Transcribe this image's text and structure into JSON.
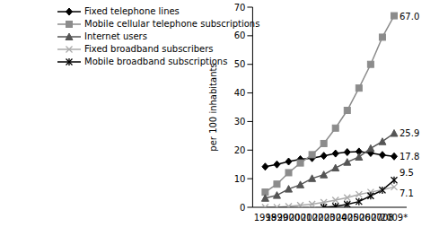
{
  "chart_data": {
    "type": "line",
    "y_label": "per 100 inhabitants",
    "categories": [
      "1998",
      "1999",
      "2000",
      "2001",
      "2002",
      "2003",
      "2004",
      "2005",
      "2006",
      "2007",
      "2008",
      "2009*"
    ],
    "ylim": [
      0,
      70
    ],
    "yticks": [
      0,
      10,
      20,
      30,
      40,
      50,
      60,
      70
    ],
    "grid": false,
    "legend": "upper left",
    "series": [
      {
        "name": "Fixed telephone lines",
        "color": "#000000",
        "marker": "diamond",
        "values": [
          14.2,
          15.0,
          16.0,
          16.8,
          17.2,
          18.0,
          18.8,
          19.3,
          19.5,
          19.0,
          18.3,
          17.8
        ],
        "value_labels": [
          null,
          null,
          null,
          null,
          null,
          null,
          null,
          null,
          null,
          null,
          null,
          "17.8"
        ]
      },
      {
        "name": "Mobile cellular telephone subscriptions",
        "color": "#8c8c8c",
        "marker": "square",
        "values": [
          5.3,
          8.1,
          12.1,
          15.5,
          18.4,
          22.3,
          27.7,
          33.9,
          41.7,
          50.0,
          59.5,
          67.0
        ],
        "value_labels": [
          null,
          null,
          null,
          null,
          null,
          null,
          null,
          null,
          null,
          null,
          null,
          "67.0"
        ]
      },
      {
        "name": "Internet users",
        "color": "#555555",
        "marker": "triangle",
        "values": [
          3.2,
          4.2,
          6.4,
          7.9,
          10.1,
          11.4,
          13.8,
          15.8,
          17.6,
          20.6,
          23.0,
          25.9
        ],
        "value_labels": [
          null,
          null,
          null,
          null,
          null,
          null,
          null,
          null,
          null,
          null,
          null,
          "25.9"
        ]
      },
      {
        "name": "Fixed broadband subscribers",
        "color": "#aaaaaa",
        "marker": "cross",
        "values": [
          0.0,
          0.0,
          0.3,
          0.7,
          1.1,
          1.7,
          2.5,
          3.4,
          4.5,
          5.3,
          6.1,
          7.1
        ],
        "value_labels": [
          null,
          null,
          null,
          null,
          null,
          null,
          null,
          null,
          null,
          null,
          null,
          "7.1"
        ]
      },
      {
        "name": "Mobile broadband subscriptions",
        "color": "#000000",
        "marker": "star",
        "values": [
          null,
          null,
          null,
          null,
          null,
          0.0,
          0.3,
          1.0,
          2.0,
          4.0,
          6.0,
          9.5
        ],
        "value_labels": [
          null,
          null,
          null,
          null,
          null,
          null,
          null,
          null,
          null,
          null,
          null,
          "9.5"
        ]
      }
    ]
  }
}
